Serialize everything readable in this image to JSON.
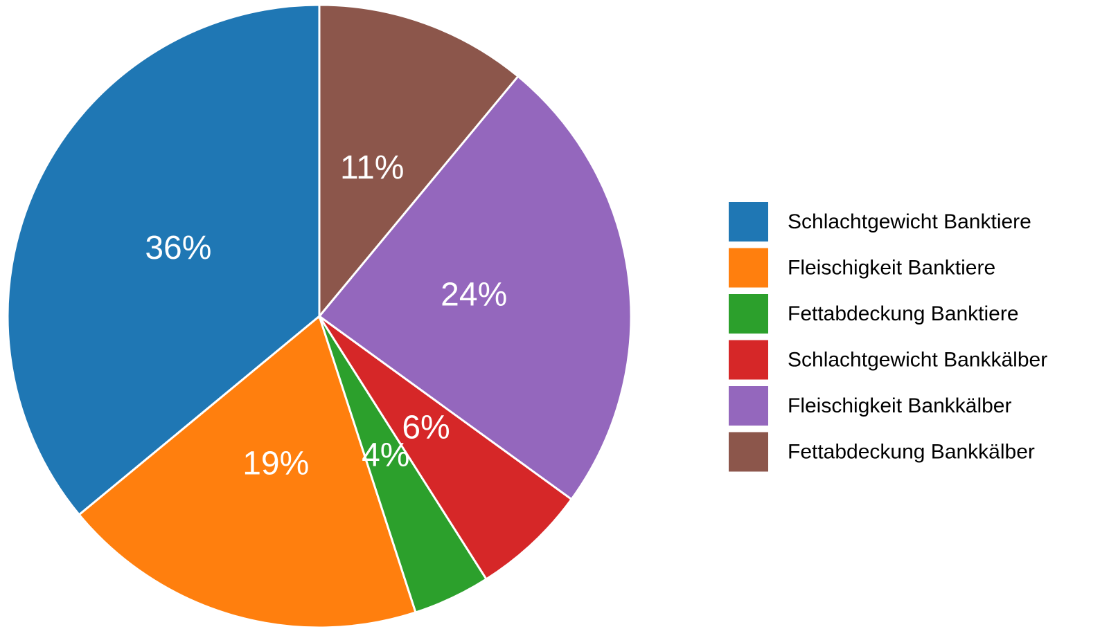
{
  "chart_data": {
    "type": "pie",
    "categories": [
      "Schlachtgewicht Banktiere",
      "Fleischigkeit Banktiere",
      "Fettabdeckung Banktiere",
      "Schlachtgewicht Bankkälber",
      "Fleischigkeit Bankkälber",
      "Fettabdeckung Bankkälber"
    ],
    "values": [
      36,
      19,
      4,
      6,
      24,
      11
    ],
    "value_labels": [
      "36%",
      "19%",
      "4%",
      "6%",
      "24%",
      "11%"
    ],
    "colors": [
      "#1f77b4",
      "#ff7f0e",
      "#2ca02c",
      "#d62728",
      "#9467bd",
      "#8c564b"
    ],
    "direction": "counterclockwise",
    "legend": "right"
  }
}
